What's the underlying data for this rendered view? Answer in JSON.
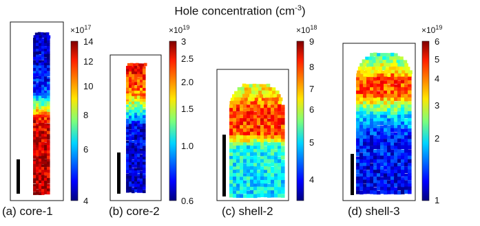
{
  "figure": {
    "title_main": "Hole concentration (cm",
    "title_sup": "-3",
    "title_close": ")",
    "panels": [
      {
        "caption": "(a) core-1",
        "multiplier_base": "×10",
        "multiplier_exp": "17",
        "ticks": [
          "14",
          "12",
          "10",
          "8",
          "6",
          "4"
        ],
        "profile": [
          [
            0.0,
            0.02
          ],
          [
            0.38,
            0.18
          ],
          [
            0.46,
            0.55
          ],
          [
            0.55,
            0.9
          ],
          [
            1.0,
            0.95
          ]
        ]
      },
      {
        "caption": "(b) core-2",
        "multiplier_base": "×10",
        "multiplier_exp": "19",
        "ticks": [
          "3",
          "2.5",
          "2.0",
          "1.5",
          "1.0",
          "0.6"
        ],
        "profile": [
          [
            0.0,
            0.9
          ],
          [
            0.25,
            0.75
          ],
          [
            0.4,
            0.35
          ],
          [
            0.5,
            0.1
          ],
          [
            1.0,
            0.06
          ]
        ]
      },
      {
        "caption": "(c) shell-2",
        "multiplier_base": "×10",
        "multiplier_exp": "18",
        "ticks": [
          "9",
          "8",
          "7",
          "6",
          "5",
          "4"
        ],
        "profile": [
          [
            0.0,
            0.55
          ],
          [
            0.25,
            0.82
          ],
          [
            0.45,
            0.8
          ],
          [
            0.56,
            0.4
          ],
          [
            1.0,
            0.35
          ]
        ]
      },
      {
        "caption": "(d) shell-3",
        "multiplier_base": "×10",
        "multiplier_exp": "19",
        "ticks": [
          "6",
          "5",
          "4",
          "3",
          "2",
          "1"
        ],
        "profile": [
          [
            0.0,
            0.35
          ],
          [
            0.2,
            0.8
          ],
          [
            0.3,
            0.78
          ],
          [
            0.45,
            0.35
          ],
          [
            0.6,
            0.15
          ],
          [
            1.0,
            0.1
          ]
        ]
      }
    ]
  }
}
